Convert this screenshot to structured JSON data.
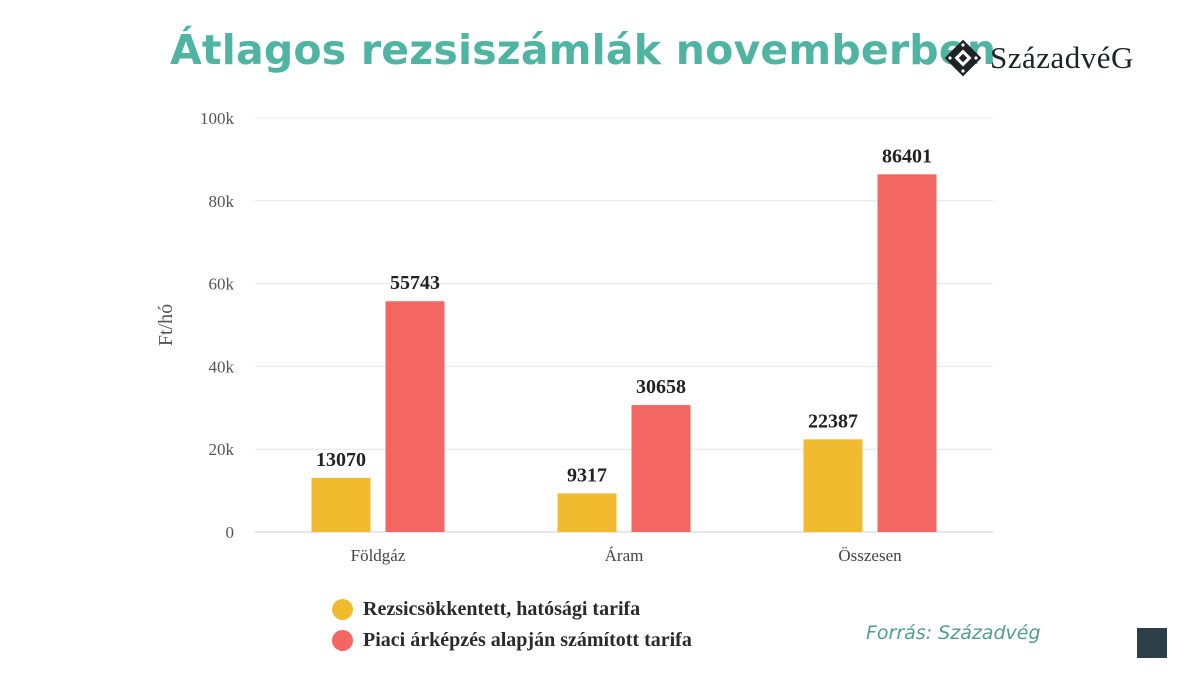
{
  "page": {
    "title": "Átlagos rezsiszámlák novemberben",
    "logo_text": "SzázadvéG",
    "logo_icon": "diamond-emblem-icon",
    "source": "Forrás: Századvég",
    "colors": {
      "title": "#4fb5a2",
      "source": "#4f9e91",
      "corner": "#2d3e48"
    }
  },
  "chart_data": {
    "type": "bar",
    "categories": [
      "Földgáz",
      "Áram",
      "Összesen"
    ],
    "series": [
      {
        "name": "Rezsicsökkentett, hatósági tarifa",
        "color": "#f0bb2f",
        "values": [
          13070,
          9317,
          22387
        ]
      },
      {
        "name": "Piaci árképzés alapján számított tarifa",
        "color": "#f46662",
        "values": [
          55743,
          30658,
          86401
        ]
      }
    ],
    "ylabel": "Ft/hó",
    "ylim": [
      0,
      100000
    ],
    "yticks": [
      0,
      20000,
      40000,
      60000,
      80000,
      100000
    ],
    "ytick_labels": [
      "0",
      "20k",
      "40k",
      "60k",
      "80k",
      "100k"
    ],
    "grid": true,
    "legend_position": "bottom"
  }
}
